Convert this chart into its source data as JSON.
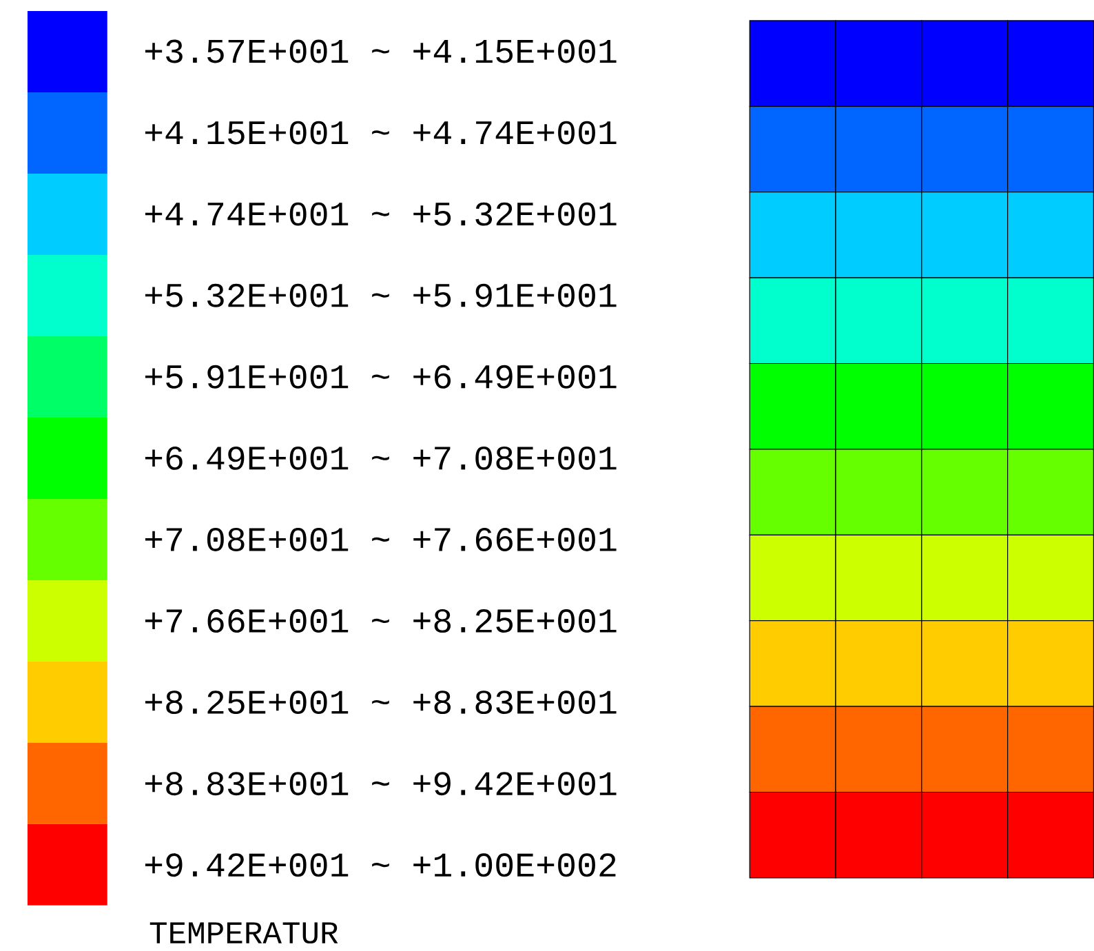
{
  "chart_data": {
    "type": "heatmap",
    "clabel": "TEMPERATUR",
    "categories": [
      null,
      null,
      null,
      null
    ],
    "y_categories": [
      null,
      null,
      null,
      null,
      null,
      null,
      null,
      null,
      null,
      null
    ],
    "cells": [
      [
        39,
        39,
        39,
        39
      ],
      [
        45,
        45,
        45,
        45
      ],
      [
        52,
        52,
        52,
        52
      ],
      [
        58,
        58,
        58,
        58
      ],
      [
        65,
        65,
        65,
        65
      ],
      [
        71,
        71,
        71,
        71
      ],
      [
        78,
        78,
        78,
        78
      ],
      [
        84,
        84,
        84,
        84
      ],
      [
        90,
        90,
        90,
        90
      ],
      [
        97,
        97,
        97,
        97
      ]
    ],
    "clim": [
      35.7,
      100
    ],
    "colors": [
      "#0000ff",
      "#0066ff",
      "#00ccff",
      "#00ffcc",
      "#00ff66",
      "#00ff00",
      "#66ff00",
      "#ccff00",
      "#ffcc00",
      "#ff6600",
      "#ff0000"
    ],
    "cticks": [
      {
        "value": 38.6,
        "label": "+3.57E+001 ~ +4.15E+001"
      },
      {
        "value": 44.45,
        "label": "+4.15E+001 ~ +4.74E+001"
      },
      {
        "value": 50.3,
        "label": "+4.74E+001 ~ +5.32E+001"
      },
      {
        "value": 56.15,
        "label": "+5.32E+001 ~ +5.91E+001"
      },
      {
        "value": 62,
        "label": "+5.91E+001 ~ +6.49E+001"
      },
      {
        "value": 67.85,
        "label": "+6.49E+001 ~ +7.08E+001"
      },
      {
        "value": 73.7,
        "label": "+7.08E+001 ~ +7.66E+001"
      },
      {
        "value": 79.55,
        "label": "+7.66E+001 ~ +8.25E+001"
      },
      {
        "value": 85.4,
        "label": "+8.25E+001 ~ +8.83E+001"
      },
      {
        "value": 91.25,
        "label": "+8.83E+001 ~ +9.42E+001"
      },
      {
        "value": 97.1,
        "label": "+9.42E+001 ~ +1.00E+002"
      }
    ]
  }
}
